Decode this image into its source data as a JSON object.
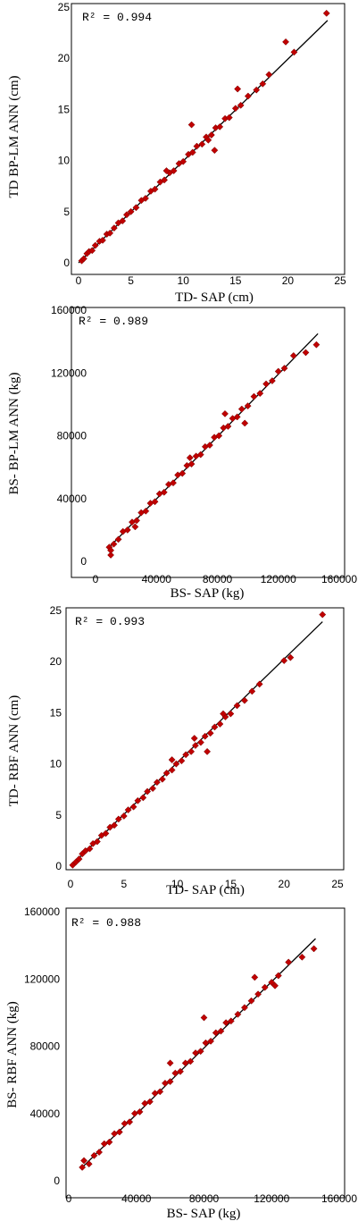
{
  "chart_data": [
    {
      "type": "scatter",
      "r2_label": "R² = 0.994",
      "xlabel": "TD- SAP (cm)",
      "ylabel": "TD BP-LM ANN (cm)",
      "xlim": [
        0,
        25
      ],
      "ylim": [
        0,
        25
      ],
      "x_ticks": [
        "0",
        "5",
        "10",
        "15",
        "20",
        "25"
      ],
      "y_ticks": [
        "0",
        "5",
        "10",
        "15",
        "20",
        "25"
      ],
      "fit_line": {
        "x": [
          0,
          23.8
        ],
        "y": [
          0,
          23.7
        ]
      },
      "points": {
        "x": [
          0.3,
          0.5,
          0.8,
          1.0,
          1.3,
          1.6,
          2.0,
          2.3,
          2.7,
          3.0,
          3.4,
          3.8,
          4.2,
          4.6,
          5.0,
          5.5,
          6.0,
          6.4,
          6.9,
          7.3,
          7.8,
          8.2,
          8.7,
          9.1,
          9.6,
          10.0,
          10.5,
          10.9,
          11.3,
          11.8,
          12.2,
          12.7,
          13.1,
          13.5,
          14.0,
          14.4,
          15.0,
          15.5,
          16.2,
          17.0,
          17.6,
          18.2,
          19.8,
          20.6,
          23.7,
          10.8,
          13.0,
          15.2,
          8.4,
          12.4
        ],
        "y": [
          0.2,
          0.4,
          0.9,
          1.1,
          1.2,
          1.7,
          2.1,
          2.2,
          2.8,
          2.9,
          3.4,
          3.9,
          4.1,
          4.7,
          5.0,
          5.4,
          6.1,
          6.3,
          7.0,
          7.2,
          7.9,
          8.1,
          8.8,
          9.0,
          9.7,
          9.9,
          10.6,
          10.8,
          11.4,
          11.6,
          12.3,
          12.5,
          13.2,
          13.3,
          14.1,
          14.2,
          15.1,
          15.4,
          16.3,
          16.9,
          17.5,
          18.4,
          21.6,
          20.6,
          24.4,
          13.5,
          11.0,
          17.0,
          9.0,
          12.0
        ]
      }
    },
    {
      "type": "scatter",
      "r2_label": "R² = 0.989",
      "xlabel": "BS- SAP (kg)",
      "ylabel": "BS- BP-LM ANN (kg)",
      "xlim": [
        0,
        160000
      ],
      "ylim": [
        0,
        160000
      ],
      "x_ticks": [
        "0",
        "40000",
        "80000",
        "120000",
        "160000"
      ],
      "y_ticks": [
        "0",
        "40000",
        "80000",
        "120000",
        "160000"
      ],
      "fit_line": {
        "x": [
          9000,
          146000
        ],
        "y": [
          9000,
          145000
        ]
      },
      "points": {
        "x": [
          9000,
          10000,
          12000,
          15000,
          18000,
          21000,
          24000,
          27000,
          30000,
          33000,
          36000,
          39000,
          42000,
          45000,
          48000,
          51000,
          54000,
          57000,
          60000,
          63000,
          66000,
          69000,
          72000,
          75000,
          78000,
          81000,
          84000,
          87000,
          90000,
          93000,
          96000,
          100000,
          104000,
          108000,
          112000,
          116000,
          120000,
          124000,
          130000,
          138000,
          145000,
          10000,
          26000,
          62000,
          85000,
          98000
        ],
        "y": [
          9000,
          4000,
          11000,
          14000,
          19000,
          20000,
          25000,
          26000,
          31000,
          32000,
          37000,
          38000,
          43000,
          44000,
          49000,
          50000,
          55000,
          56000,
          61000,
          62000,
          67000,
          68000,
          73000,
          74000,
          79000,
          80000,
          85000,
          86000,
          91000,
          92000,
          97000,
          99000,
          105000,
          107000,
          113000,
          115000,
          121000,
          123000,
          131000,
          133000,
          138000,
          7000,
          22000,
          66000,
          94000,
          88000
        ]
      }
    },
    {
      "type": "scatter",
      "r2_label": "R² = 0.993",
      "xlabel": "TD- SAP (cm)",
      "ylabel": "TD- RBF ANN (cm)",
      "xlim": [
        0,
        25
      ],
      "ylim": [
        0,
        25
      ],
      "x_ticks": [
        "0",
        "5",
        "10",
        "15",
        "20",
        "25"
      ],
      "y_ticks": [
        "0",
        "5",
        "10",
        "15",
        "20",
        "25"
      ],
      "fit_line": {
        "x": [
          0,
          23.6
        ],
        "y": [
          0,
          23.9
        ]
      },
      "points": {
        "x": [
          0.2,
          0.5,
          0.8,
          1.1,
          1.4,
          1.8,
          2.1,
          2.5,
          2.9,
          3.3,
          3.7,
          4.1,
          4.5,
          5.0,
          5.4,
          5.9,
          6.3,
          6.8,
          7.2,
          7.7,
          8.1,
          8.6,
          9.0,
          9.5,
          9.9,
          10.4,
          10.8,
          11.3,
          11.7,
          12.2,
          12.6,
          13.1,
          13.5,
          14.0,
          14.5,
          15.0,
          15.6,
          16.3,
          17.0,
          17.7,
          20.0,
          20.6,
          23.6,
          11.6,
          12.8,
          9.5,
          14.3
        ],
        "y": [
          0.1,
          0.4,
          0.7,
          1.2,
          1.5,
          1.7,
          2.2,
          2.4,
          3.0,
          3.2,
          3.8,
          4.0,
          4.6,
          4.9,
          5.5,
          5.8,
          6.4,
          6.7,
          7.3,
          7.6,
          8.2,
          8.5,
          9.1,
          9.4,
          10.0,
          10.3,
          10.9,
          11.2,
          11.8,
          12.1,
          12.7,
          13.0,
          13.6,
          13.9,
          14.6,
          14.9,
          15.7,
          16.2,
          17.1,
          17.8,
          20.1,
          20.4,
          24.6,
          12.5,
          11.2,
          10.4,
          14.9
        ]
      }
    },
    {
      "type": "scatter",
      "r2_label": "R² = 0.988",
      "xlabel": "BS- SAP (kg)",
      "ylabel": "BS- RBF ANN (kg)",
      "xlim": [
        0,
        160000
      ],
      "ylim": [
        0,
        160000
      ],
      "x_ticks": [
        "0",
        "40000",
        "80000",
        "120000",
        "160000"
      ],
      "y_ticks": [
        "0",
        "40000",
        "80000",
        "120000",
        "160000"
      ],
      "fit_line": {
        "x": [
          8000,
          146000
        ],
        "y": [
          8000,
          144000
        ]
      },
      "points": {
        "x": [
          8000,
          9000,
          12000,
          15000,
          18000,
          21000,
          24000,
          27000,
          30000,
          33000,
          36000,
          39000,
          42000,
          45000,
          48000,
          51000,
          54000,
          57000,
          60000,
          63000,
          66000,
          69000,
          72000,
          75000,
          78000,
          81000,
          84000,
          87000,
          90000,
          93000,
          96000,
          100000,
          104000,
          108000,
          112000,
          116000,
          120000,
          124000,
          130000,
          138000,
          145000,
          80000,
          60000,
          110000,
          122000
        ],
        "y": [
          8000,
          12000,
          10000,
          15000,
          17000,
          22000,
          23000,
          28000,
          29000,
          34000,
          35000,
          40000,
          41000,
          46000,
          47000,
          52000,
          53000,
          58000,
          59000,
          64000,
          65000,
          70000,
          71000,
          76000,
          77000,
          82000,
          83000,
          88000,
          89000,
          94000,
          95000,
          99000,
          103000,
          107000,
          111000,
          115000,
          118000,
          122000,
          130000,
          133000,
          138000,
          97000,
          70000,
          121000,
          116000
        ]
      }
    }
  ]
}
